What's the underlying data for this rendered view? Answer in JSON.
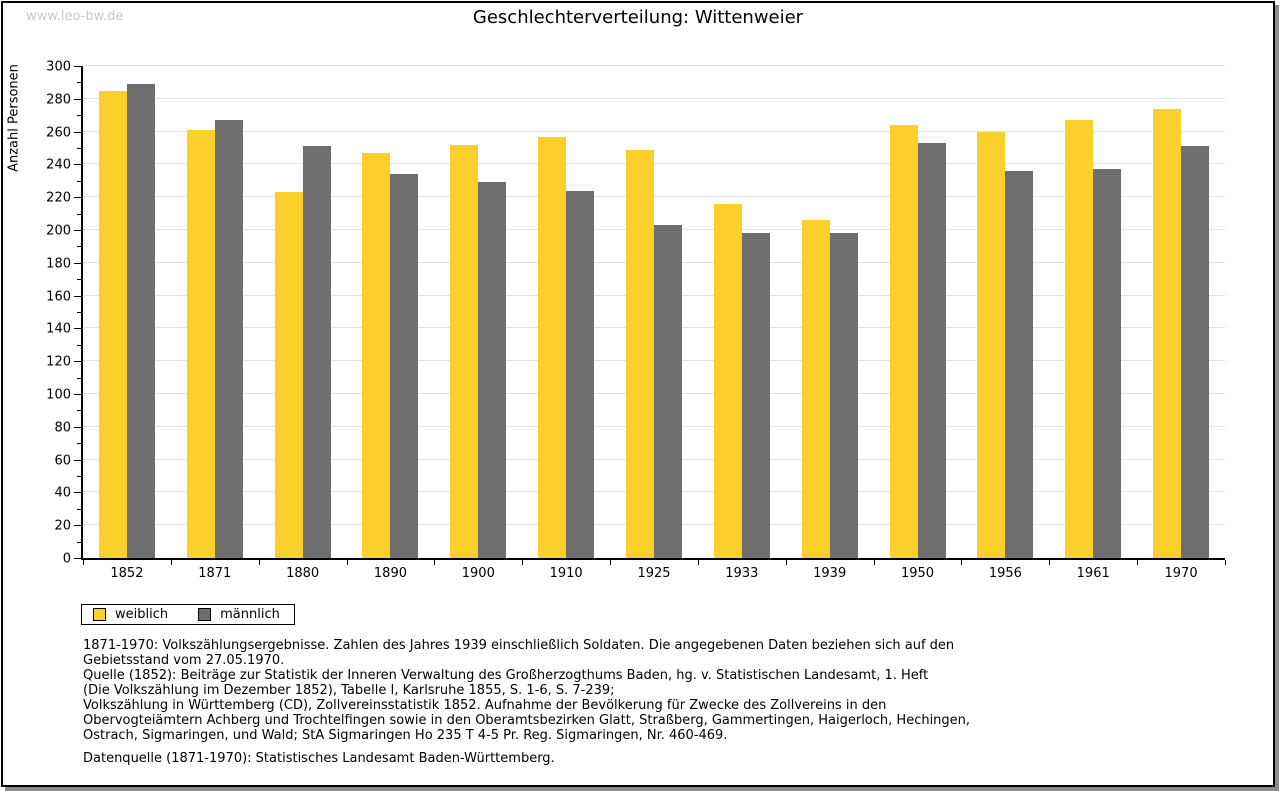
{
  "page": {
    "watermark": "www.leo-bw.de"
  },
  "chart_data": {
    "type": "bar",
    "title": "Geschlechterverteilung: Wittenweier",
    "xlabel": "",
    "ylabel": "Anzahl Personen",
    "ylim": [
      0,
      300
    ],
    "ytick_step": 20,
    "yminor_step": 10,
    "grid": true,
    "legend_position": "bottom-left",
    "categories": [
      "1852",
      "1871",
      "1880",
      "1890",
      "1900",
      "1910",
      "1925",
      "1933",
      "1939",
      "1950",
      "1956",
      "1961",
      "1970"
    ],
    "series": [
      {
        "name": "weiblich",
        "color": "#FBD02C",
        "values": [
          285,
          261,
          223,
          247,
          252,
          257,
          249,
          216,
          206,
          264,
          260,
          267,
          274
        ]
      },
      {
        "name": "männlich",
        "color": "#6E6E6E",
        "values": [
          289,
          267,
          251,
          234,
          229,
          224,
          203,
          198,
          198,
          253,
          236,
          237,
          251
        ]
      }
    ]
  },
  "legend": {
    "items": [
      {
        "label": "weiblich",
        "color": "#FBD02C"
      },
      {
        "label": "männlich",
        "color": "#6E6E6E"
      }
    ]
  },
  "footnotes": {
    "lines": [
      "1871-1970: Volkszählungsergebnisse. Zahlen des Jahres 1939 einschließlich Soldaten. Die angegebenen Daten beziehen sich auf den",
      "Gebietsstand vom 27.05.1970.",
      "Quelle (1852): Beiträge zur Statistik der Inneren Verwaltung des Großherzogthums Baden, hg. v. Statistischen Landesamt, 1. Heft",
      "(Die Volkszählung im Dezember 1852), Tabelle I, Karlsruhe 1855, S. 1-6, S. 7-239;",
      "Volkszählung in Württemberg (CD), Zollvereinsstatistik 1852. Aufnahme der Bevölkerung für Zwecke des Zollvereins in den",
      "Obervogteiämtern Achberg und Trochtelfingen sowie in den Oberamtsbezirken Glatt, Straßberg, Gammertingen, Haigerloch, Hechingen,",
      "Ostrach, Sigmaringen, und Wald; StA Sigmaringen Ho 235 T 4-5 Pr. Reg. Sigmaringen, Nr. 460-469.",
      "",
      "Datenquelle (1871-1970): Statistisches Landesamt Baden-Württemberg."
    ]
  },
  "colors": {
    "gridline": "#E3E3E3",
    "axis": "#000000",
    "watermark": "#CACACA",
    "frame_shadow": "#8C8C8C"
  }
}
